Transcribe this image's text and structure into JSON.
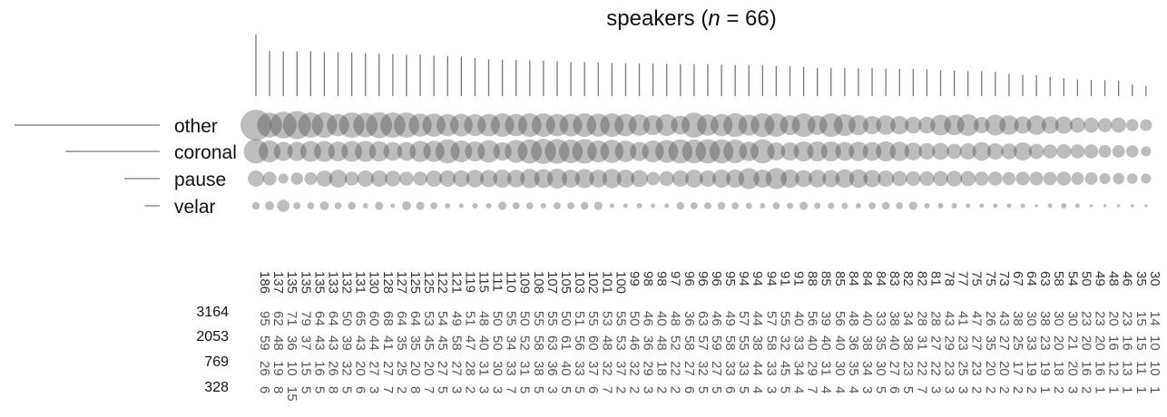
{
  "chart_data": {
    "type": "bubble-matrix",
    "title_prefix": "speakers (",
    "title_n": "n",
    "title_suffix": " = 66)",
    "categories": [
      "other",
      "coronal",
      "pause",
      "velar"
    ],
    "category_totals": [
      3164,
      2053,
      769,
      328
    ],
    "speaker_totals": [
      186,
      137,
      135,
      135,
      135,
      133,
      132,
      131,
      130,
      128,
      127,
      125,
      125,
      122,
      121,
      119,
      115,
      111,
      110,
      109,
      108,
      107,
      105,
      103,
      102,
      101,
      100,
      99,
      98,
      98,
      97,
      96,
      96,
      96,
      95,
      94,
      94,
      94,
      91,
      91,
      88,
      85,
      85,
      84,
      84,
      84,
      83,
      82,
      82,
      81,
      78,
      77,
      75,
      75,
      73,
      67,
      64,
      63,
      58,
      54,
      50,
      49,
      48,
      46,
      35,
      30
    ],
    "counts": {
      "other": [
        95,
        62,
        71,
        79,
        64,
        64,
        50,
        65,
        60,
        68,
        64,
        64,
        53,
        54,
        49,
        51,
        48,
        50,
        55,
        50,
        55,
        55,
        50,
        51,
        55,
        53,
        55,
        50,
        46,
        40,
        48,
        36,
        63,
        46,
        49,
        57,
        44,
        57,
        55,
        40,
        56,
        39,
        56,
        48,
        40,
        33,
        38,
        34,
        28,
        28,
        43,
        41,
        47,
        26,
        43,
        38,
        30,
        38,
        30,
        30,
        23,
        23,
        20,
        23,
        15,
        14
      ],
      "coronal": [
        59,
        48,
        36,
        37,
        43,
        43,
        39,
        43,
        44,
        41,
        35,
        35,
        45,
        45,
        58,
        47,
        40,
        50,
        34,
        52,
        58,
        63,
        61,
        56,
        60,
        48,
        53,
        46,
        36,
        48,
        52,
        58,
        57,
        59,
        58,
        55,
        38,
        58,
        32,
        33,
        40,
        40,
        40,
        36,
        38,
        35,
        40,
        38,
        31,
        27,
        29,
        23,
        27,
        35,
        27,
        25,
        33,
        23,
        20,
        21,
        20,
        20,
        16,
        16,
        15,
        10
      ],
      "pause": [
        26,
        19,
        10,
        15,
        16,
        26,
        32,
        20,
        27,
        27,
        25,
        20,
        20,
        27,
        27,
        28,
        31,
        30,
        33,
        31,
        38,
        36,
        40,
        33,
        37,
        32,
        37,
        32,
        29,
        18,
        22,
        27,
        32,
        27,
        33,
        33,
        44,
        33,
        45,
        34,
        29,
        31,
        30,
        35,
        34,
        30,
        27,
        23,
        22,
        22,
        23,
        25,
        23,
        20,
        20,
        17,
        19,
        19,
        18,
        20,
        16,
        16,
        12,
        13,
        11,
        10
      ],
      "velar": [
        6,
        8,
        15,
        5,
        5,
        8,
        5,
        6,
        3,
        7,
        2,
        8,
        7,
        5,
        3,
        2,
        3,
        3,
        7,
        5,
        5,
        3,
        5,
        5,
        6,
        7,
        2,
        2,
        3,
        2,
        2,
        6,
        5,
        5,
        6,
        5,
        4,
        3,
        5,
        4,
        7,
        4,
        4,
        4,
        3,
        5,
        6,
        5,
        7,
        3,
        3,
        3,
        2,
        2,
        2,
        2,
        2,
        1,
        2,
        3,
        2,
        1,
        1,
        1,
        1,
        1
      ]
    }
  }
}
